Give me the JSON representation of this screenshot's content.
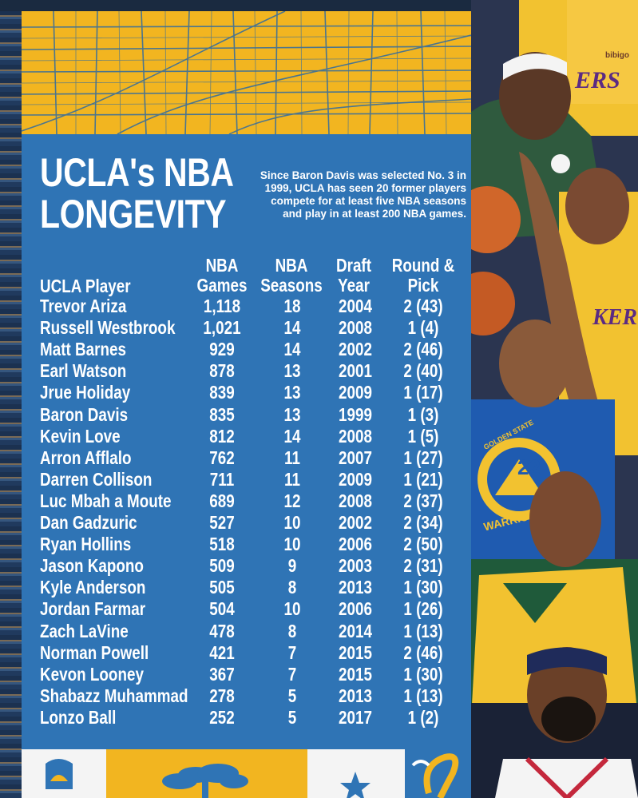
{
  "title": {
    "line1": "UCLA's NBA",
    "line2": "LONGEVITY"
  },
  "blurb": "Since Baron Davis was selected No. 3 in 1999, UCLA has seen 20 former players compete for at least five NBA seasons and play in at least 200 NBA games.",
  "headers": {
    "player": "UCLA Player",
    "games_1": "NBA",
    "games_2": "Games",
    "seasons_1": "NBA",
    "seasons_2": "Seasons",
    "draft_1": "Draft",
    "draft_2": "Year",
    "pick_1": "Round &",
    "pick_2": "Pick"
  },
  "players": [
    {
      "name": "Trevor Ariza",
      "games": "1,118",
      "seasons": "18",
      "year": "2004",
      "pick": "2 (43)"
    },
    {
      "name": "Russell Westbrook",
      "games": "1,021",
      "seasons": "14",
      "year": "2008",
      "pick": "1 (4)"
    },
    {
      "name": "Matt Barnes",
      "games": "929",
      "seasons": "14",
      "year": "2002",
      "pick": "2 (46)"
    },
    {
      "name": "Earl Watson",
      "games": "878",
      "seasons": "13",
      "year": "2001",
      "pick": "2 (40)"
    },
    {
      "name": "Jrue Holiday",
      "games": "839",
      "seasons": "13",
      "year": "2009",
      "pick": "1 (17)"
    },
    {
      "name": "Baron Davis",
      "games": "835",
      "seasons": "13",
      "year": "1999",
      "pick": "1 (3)"
    },
    {
      "name": "Kevin Love",
      "games": "812",
      "seasons": "14",
      "year": "2008",
      "pick": "1 (5)"
    },
    {
      "name": "Arron Afflalo",
      "games": "762",
      "seasons": "11",
      "year": "2007",
      "pick": "1 (27)"
    },
    {
      "name": "Darren Collison",
      "games": "711",
      "seasons": "11",
      "year": "2009",
      "pick": "1 (21)"
    },
    {
      "name": "Luc Mbah a Moute",
      "games": "689",
      "seasons": "12",
      "year": "2008",
      "pick": "2 (37)"
    },
    {
      "name": "Dan Gadzuric",
      "games": "527",
      "seasons": "10",
      "year": "2002",
      "pick": "2 (34)"
    },
    {
      "name": "Ryan Hollins",
      "games": "518",
      "seasons": "10",
      "year": "2006",
      "pick": "2 (50)"
    },
    {
      "name": "Jason Kapono",
      "games": "509",
      "seasons": "9",
      "year": "2003",
      "pick": "2 (31)"
    },
    {
      "name": "Kyle Anderson",
      "games": "505",
      "seasons": "8",
      "year": "2013",
      "pick": "1 (30)"
    },
    {
      "name": "Jordan Farmar",
      "games": "504",
      "seasons": "10",
      "year": "2006",
      "pick": "1 (26)"
    },
    {
      "name": "Zach LaVine",
      "games": "478",
      "seasons": "8",
      "year": "2014",
      "pick": "1 (13)"
    },
    {
      "name": "Norman Powell",
      "games": "421",
      "seasons": "7",
      "year": "2015",
      "pick": "2 (46)"
    },
    {
      "name": "Kevon Looney",
      "games": "367",
      "seasons": "7",
      "year": "2015",
      "pick": "1 (30)"
    },
    {
      "name": "Shabazz Muhammad",
      "games": "278",
      "seasons": "5",
      "year": "2013",
      "pick": "1 (13)"
    },
    {
      "name": "Lonzo Ball",
      "games": "252",
      "seasons": "5",
      "year": "2017",
      "pick": "1 (2)"
    }
  ],
  "photo_text": {
    "sponsor": "bibigo",
    "lakers_1": "ERS",
    "lakers_2": "KER",
    "gsw_arc": "GOLDEN STATE",
    "gsw_number": "22",
    "gsw_bottom": "WARRIO"
  },
  "colors": {
    "panel_blue": "#2f74b5",
    "ucla_gold": "#f2b520",
    "text": "#ffffff"
  }
}
